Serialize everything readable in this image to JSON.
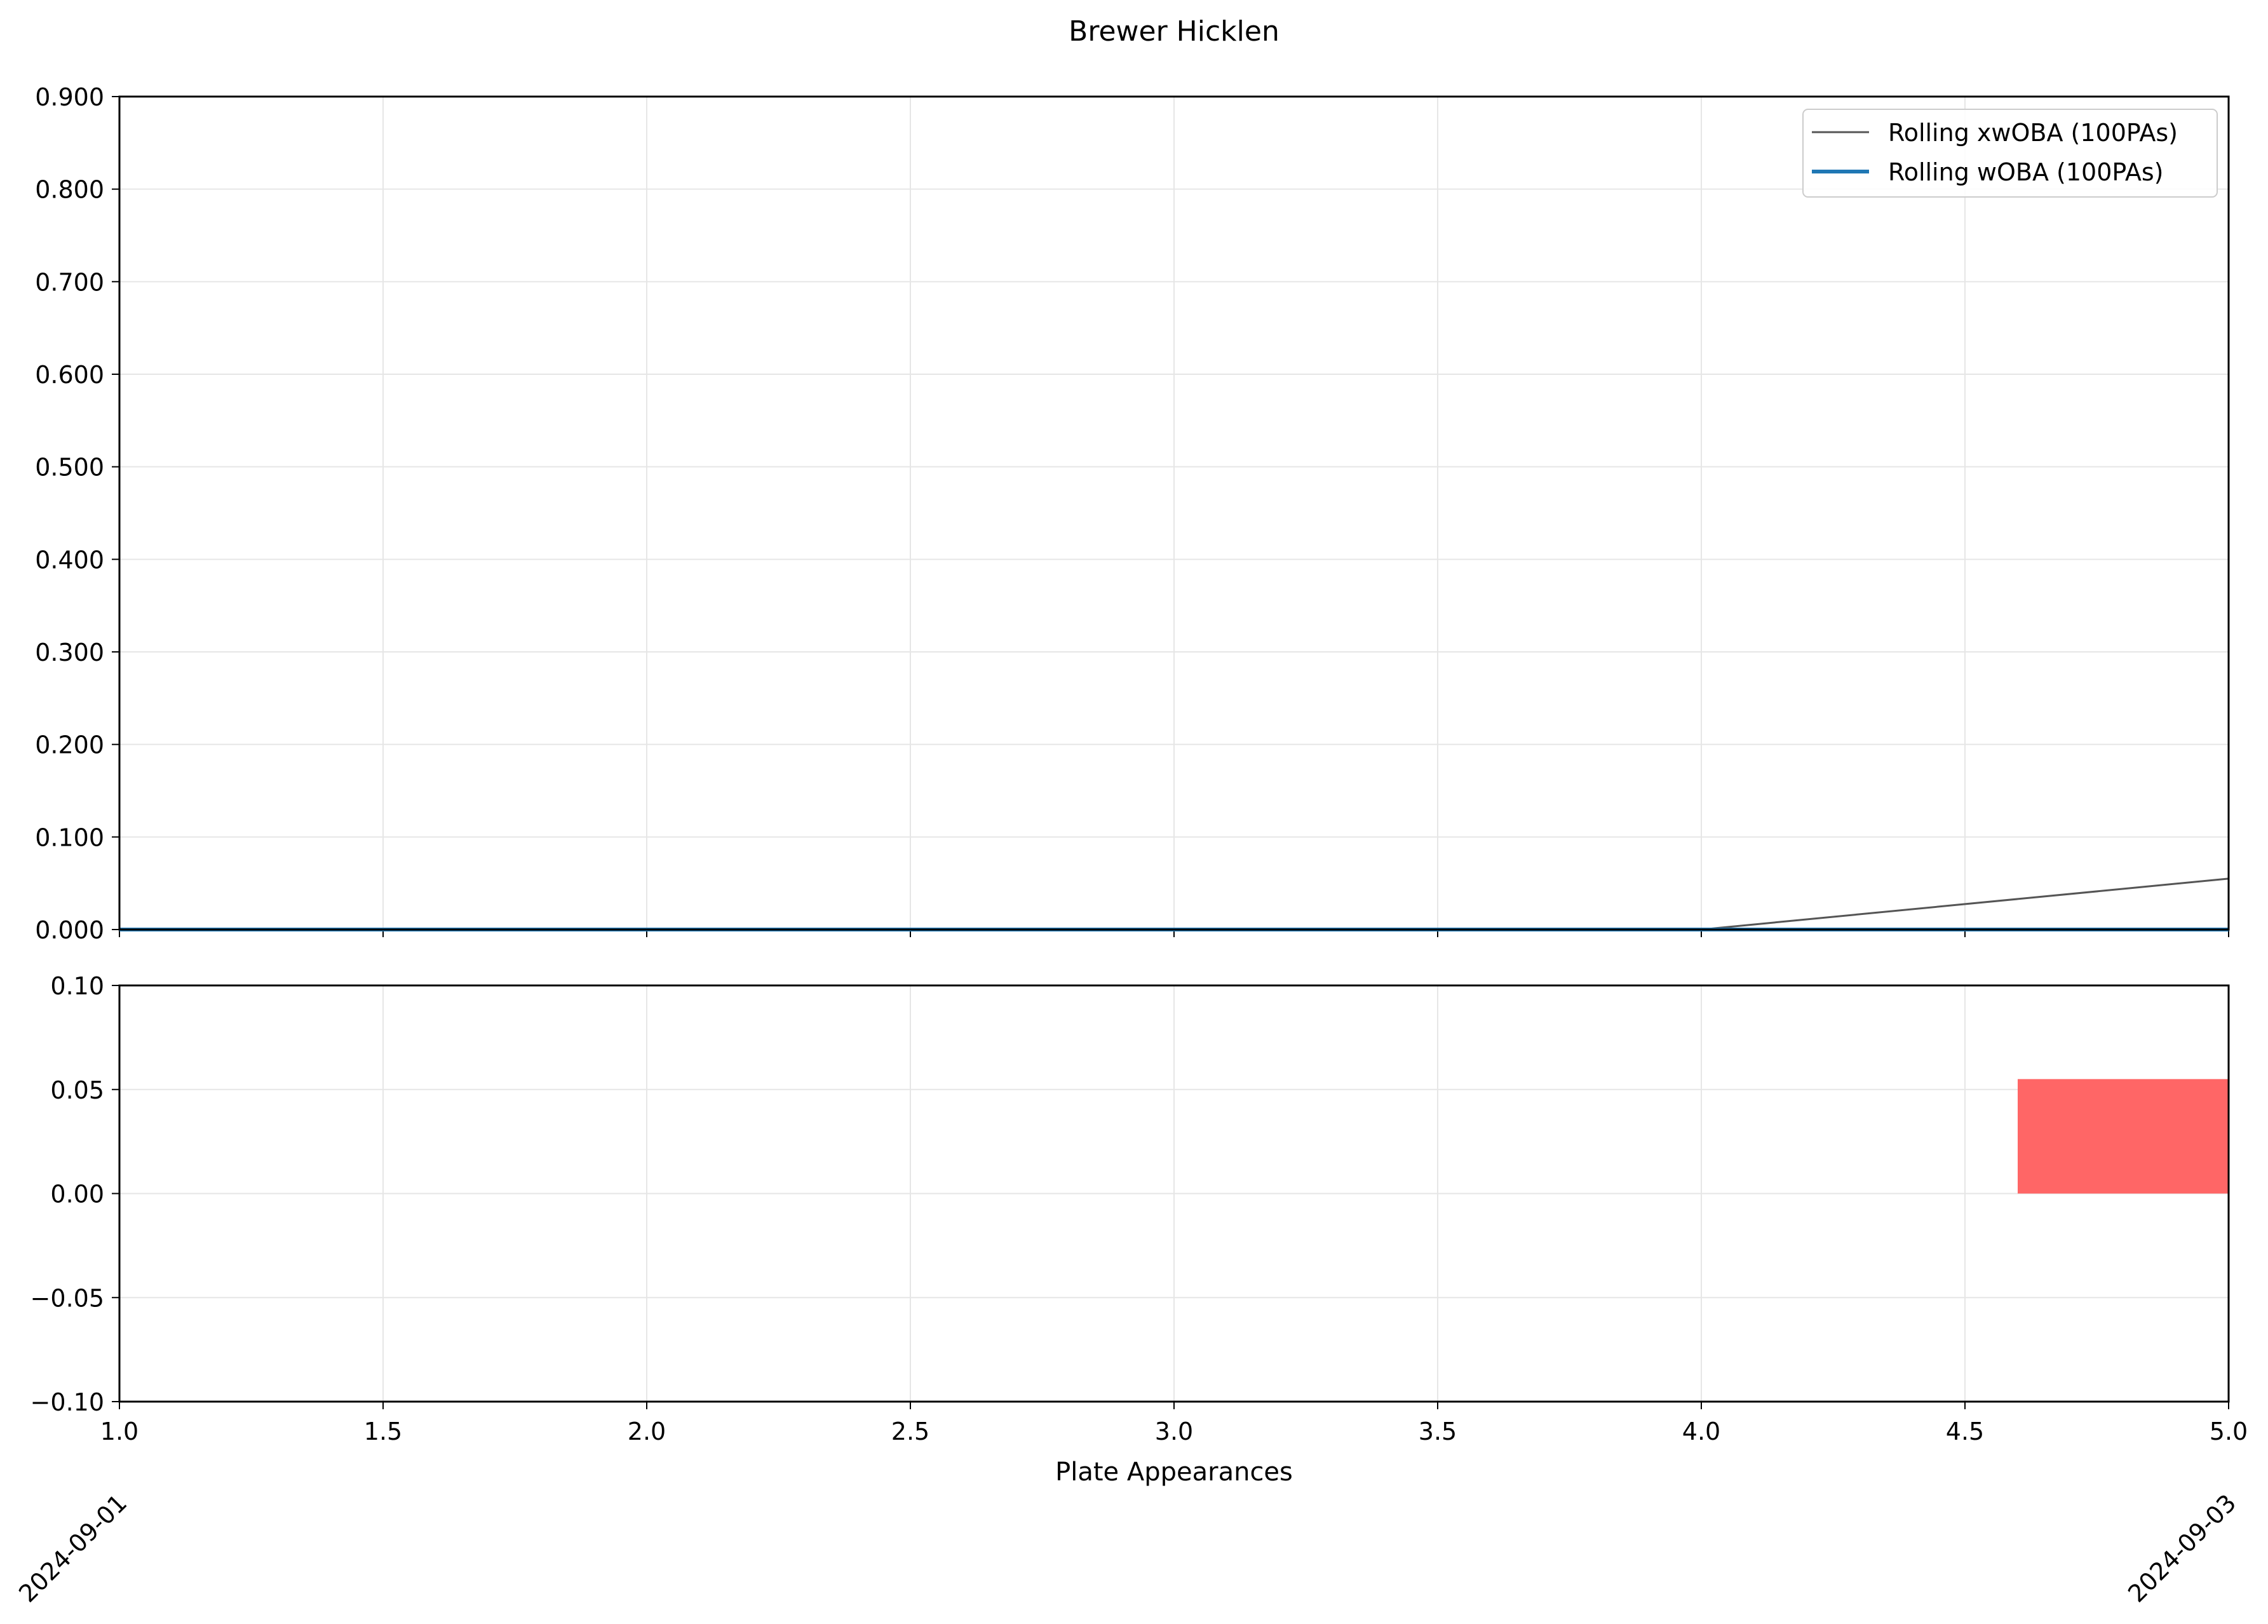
{
  "chart_data": [
    {
      "type": "line",
      "title": "Brewer Hicklen",
      "xlabel": "",
      "ylabel": "",
      "xlim": [
        1.0,
        5.0
      ],
      "ylim": [
        0.0,
        0.9
      ],
      "grid": true,
      "legend_position": "top-right",
      "y_ticks": [
        "0.000",
        "0.100",
        "0.200",
        "0.300",
        "0.400",
        "0.500",
        "0.600",
        "0.700",
        "0.800",
        "0.900"
      ],
      "series": [
        {
          "name": "Rolling xwOBA (100PAs)",
          "color": "#555555",
          "x": [
            1,
            2,
            3,
            4,
            5
          ],
          "y": [
            0.0,
            0.0,
            0.0,
            0.0,
            0.055
          ]
        },
        {
          "name": "Rolling wOBA (100PAs)",
          "color": "#1f77b4",
          "x": [
            1,
            2,
            3,
            4,
            5
          ],
          "y": [
            0.0,
            0.0,
            0.0,
            0.0,
            0.0
          ]
        }
      ]
    },
    {
      "type": "bar",
      "xlabel": "Plate Appearances",
      "ylabel": "",
      "xlim": [
        1.0,
        5.0
      ],
      "ylim": [
        -0.1,
        0.1
      ],
      "grid": true,
      "x_ticks": [
        "1.0",
        "1.5",
        "2.0",
        "2.5",
        "3.0",
        "3.5",
        "4.0",
        "4.5",
        "5.0"
      ],
      "y_ticks": [
        "−0.10",
        "−0.05",
        "0.00",
        "0.05",
        "0.10"
      ],
      "date_labels": [
        {
          "x": 1.0,
          "label": "2024-09-01"
        },
        {
          "x": 5.0,
          "label": "2024-09-03"
        }
      ],
      "bars": [
        {
          "x": 5,
          "value": 0.055,
          "color": "#ff6666"
        }
      ]
    }
  ]
}
